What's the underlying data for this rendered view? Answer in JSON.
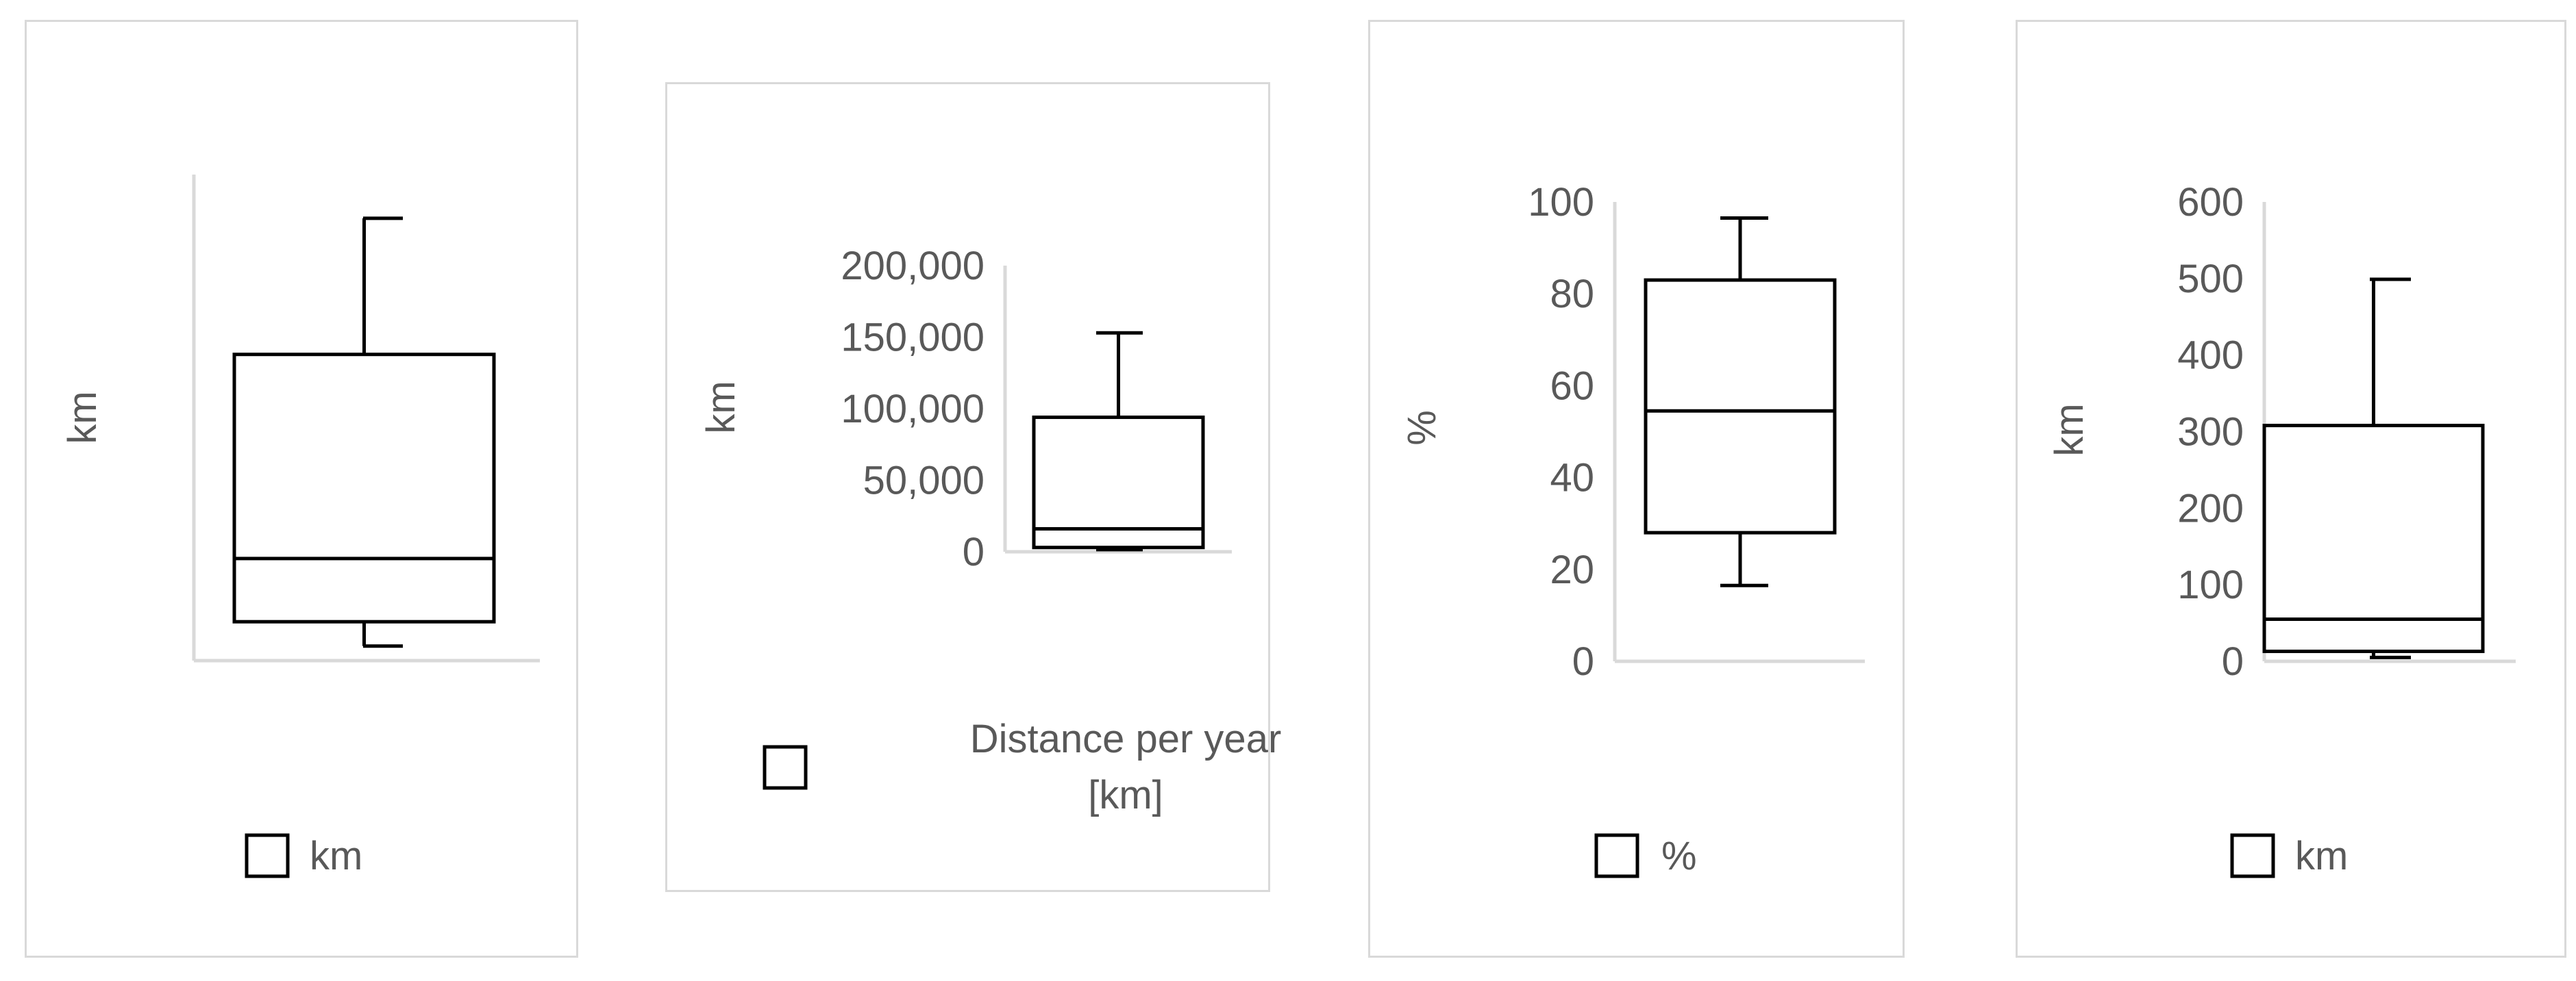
{
  "chart_data": [
    {
      "type": "box",
      "xlabel": "",
      "ylabel": "km",
      "ylim": [
        0,
        1
      ],
      "yticks": [],
      "legend": {
        "label": "km",
        "position": "bottom"
      },
      "stats": {
        "min": 0.03,
        "q1": 0.08,
        "median": 0.21,
        "q3": 0.63,
        "max": 0.91
      }
    },
    {
      "type": "box",
      "xlabel": "",
      "ylabel": "km",
      "ylim": [
        0,
        200000
      ],
      "yticks": [
        "0",
        "50,000",
        "100,000",
        "150,000",
        "200,000"
      ],
      "legend": {
        "label": "Distance per year [km]",
        "label_lines": [
          "Distance per year",
          "[km]"
        ],
        "position": "bottom"
      },
      "stats": {
        "min": 1500,
        "q1": 3000,
        "median": 16000,
        "q3": 94000,
        "max": 153000
      }
    },
    {
      "type": "box",
      "xlabel": "",
      "ylabel": "%",
      "ylim": [
        0,
        100
      ],
      "yticks": [
        "0",
        "20",
        "40",
        "60",
        "80",
        "100"
      ],
      "legend": {
        "label": "%",
        "position": "bottom"
      },
      "stats": {
        "min": 16.5,
        "q1": 28,
        "median": 54.5,
        "q3": 83,
        "max": 96.5
      }
    },
    {
      "type": "box",
      "xlabel": "",
      "ylabel": "km",
      "ylim": [
        0,
        600
      ],
      "yticks": [
        "0",
        "100",
        "200",
        "300",
        "400",
        "500",
        "600"
      ],
      "legend": {
        "label": "km",
        "position": "bottom"
      },
      "stats": {
        "min": 5,
        "q1": 13,
        "median": 55,
        "q3": 308,
        "max": 499
      }
    }
  ]
}
